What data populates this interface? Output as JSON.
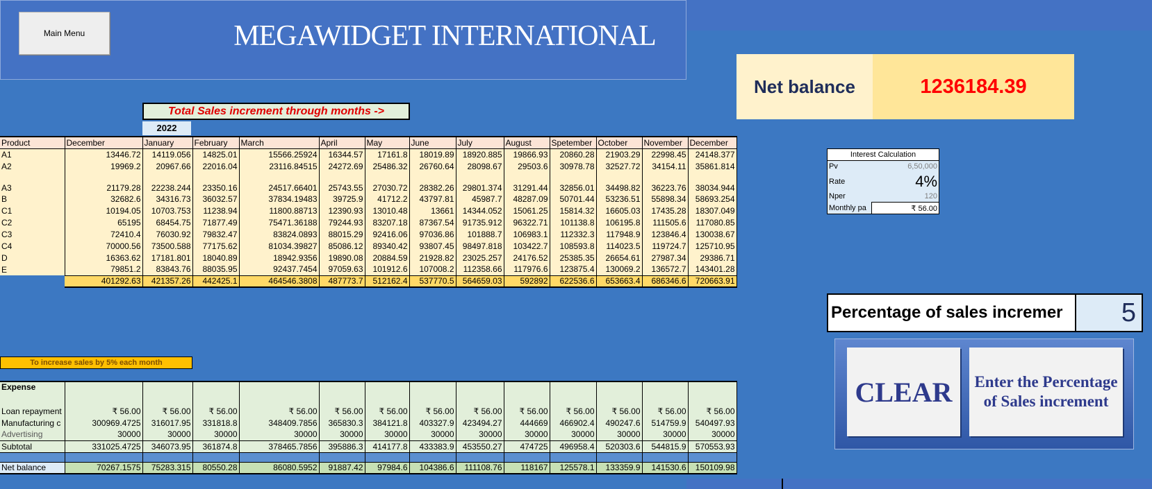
{
  "header": {
    "menu_label": "Main Menu",
    "title": "MEGAWIDGET INTERNATIONAL"
  },
  "net_balance": {
    "label": "Net balance",
    "value": "1236184.39"
  },
  "sales": {
    "title": "Total Sales increment through months ->",
    "year": "2022",
    "columns": [
      "Product",
      "December",
      "January",
      "February",
      "March",
      "April",
      "May",
      "June",
      "July",
      "August",
      "Spetember",
      "October",
      "November",
      "December"
    ],
    "rows": [
      [
        "A1",
        "13446.72",
        "14119.056",
        "14825.01",
        "15566.25924",
        "16344.57",
        "17161.8",
        "18019.89",
        "18920.885",
        "19866.93",
        "20860.28",
        "21903.29",
        "22998.45",
        "24148.377"
      ],
      [
        "A2",
        "19969.2",
        "20967.66",
        "22016.04",
        "23116.84515",
        "24272.69",
        "25486.32",
        "26760.64",
        "28098.67",
        "29503.6",
        "30978.78",
        "32527.72",
        "34154.11",
        "35861.814"
      ],
      [
        "A3",
        "21179.28",
        "22238.244",
        "23350.16",
        "24517.66401",
        "25743.55",
        "27030.72",
        "28382.26",
        "29801.374",
        "31291.44",
        "32856.01",
        "34498.82",
        "36223.76",
        "38034.944"
      ],
      [
        "B",
        "32682.6",
        "34316.73",
        "36032.57",
        "37834.19483",
        "39725.9",
        "41712.2",
        "43797.81",
        "45987.7",
        "48287.09",
        "50701.44",
        "53236.51",
        "55898.34",
        "58693.254"
      ],
      [
        "C1",
        "10194.05",
        "10703.753",
        "11238.94",
        "11800.88713",
        "12390.93",
        "13010.48",
        "13661",
        "14344.052",
        "15061.25",
        "15814.32",
        "16605.03",
        "17435.28",
        "18307.049"
      ],
      [
        "C2",
        "65195",
        "68454.75",
        "71877.49",
        "75471.36188",
        "79244.93",
        "83207.18",
        "87367.54",
        "91735.912",
        "96322.71",
        "101138.8",
        "106195.8",
        "111505.6",
        "117080.85"
      ],
      [
        "C3",
        "72410.4",
        "76030.92",
        "79832.47",
        "83824.0893",
        "88015.29",
        "92416.06",
        "97036.86",
        "101888.7",
        "106983.1",
        "112332.3",
        "117948.9",
        "123846.4",
        "130038.67"
      ],
      [
        "C4",
        "70000.56",
        "73500.588",
        "77175.62",
        "81034.39827",
        "85086.12",
        "89340.42",
        "93807.45",
        "98497.818",
        "103422.7",
        "108593.8",
        "114023.5",
        "119724.7",
        "125710.95"
      ],
      [
        "D",
        "16363.62",
        "17181.801",
        "18040.89",
        "18942.9356",
        "19890.08",
        "20884.59",
        "21928.82",
        "23025.257",
        "24176.52",
        "25385.35",
        "26654.61",
        "27987.34",
        "29386.71"
      ],
      [
        "E",
        "79851.2",
        "83843.76",
        "88035.95",
        "92437.7454",
        "97059.63",
        "101912.6",
        "107008.2",
        "112358.66",
        "117976.6",
        "123875.4",
        "130069.2",
        "136572.7",
        "143401.28"
      ]
    ],
    "totals": [
      "401292.63",
      "421357.26",
      "442425.1",
      "464546.3808",
      "487773.7",
      "512162.4",
      "537770.5",
      "564659.03",
      "592892",
      "622536.6",
      "653663.4",
      "686346.6",
      "720663.91"
    ]
  },
  "interest": {
    "title": "Interest Calculation",
    "pv_label": "Pv",
    "pv": "6,50,000",
    "rate_label": "Rate",
    "rate": "4%",
    "nper_label": "Nper",
    "nper": "120",
    "payment_label": "Monthly pa",
    "payment": "₹ 56.00"
  },
  "percentage": {
    "label": "Percentage of sales incremer",
    "value": "5"
  },
  "buttons": {
    "clear": "CLEAR",
    "enter": "Enter the Percentage of Sales increment"
  },
  "increase_note": "To increase sales by 5% each month",
  "expense": {
    "heading": "Expense",
    "loan_label": "Loan repayment",
    "loan": [
      "₹ 56.00",
      "₹ 56.00",
      "₹ 56.00",
      "₹ 56.00",
      "₹ 56.00",
      "₹ 56.00",
      "₹ 56.00",
      "₹ 56.00",
      "₹ 56.00",
      "₹ 56.00",
      "₹ 56.00",
      "₹ 56.00",
      "₹ 56.00"
    ],
    "mfg_label": "Manufacturing c",
    "mfg": [
      "300969.4725",
      "316017.95",
      "331818.8",
      "348409.7856",
      "365830.3",
      "384121.8",
      "403327.9",
      "423494.27",
      "444669",
      "466902.4",
      "490247.6",
      "514759.9",
      "540497.93"
    ],
    "adv_label": "Advertising",
    "adv": [
      "30000",
      "30000",
      "30000",
      "30000",
      "30000",
      "30000",
      "30000",
      "30000",
      "30000",
      "30000",
      "30000",
      "30000",
      "30000"
    ],
    "subtotal_label": "Subtotal",
    "subtotal": [
      "331025.4725",
      "346073.95",
      "361874.8",
      "378465.7856",
      "395886.3",
      "414177.8",
      "433383.9",
      "453550.27",
      "474725",
      "496958.4",
      "520303.6",
      "544815.9",
      "570553.93"
    ],
    "net_label": "Net balance",
    "net": [
      "70267.1575",
      "75283.315",
      "80550.28",
      "86080.5952",
      "91887.42",
      "97984.6",
      "104386.6",
      "111108.76",
      "118167",
      "125578.1",
      "133359.9",
      "141530.6",
      "150109.98"
    ]
  },
  "colors": {
    "background": "#3c78c2",
    "header": "#4472c4",
    "accent_red": "#ff0000",
    "sales_cell": "#fff2cc",
    "expense_cell": "#e2efda"
  }
}
